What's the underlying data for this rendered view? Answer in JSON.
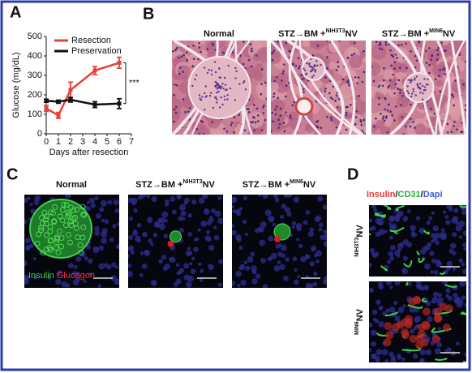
{
  "chart_data": {
    "type": "line",
    "panel": "A",
    "ylabel": "Glucose (mg/dL)",
    "xlabel": "Days after resection",
    "x": [
      0,
      1,
      2,
      4,
      6
    ],
    "series": [
      {
        "name": "Resection",
        "color": "#e5413b",
        "values": [
          130,
          95,
          225,
          325,
          365
        ],
        "errors": [
          15,
          15,
          40,
          20,
          28
        ]
      },
      {
        "name": "Preservation",
        "color": "#111111",
        "values": [
          170,
          165,
          175,
          150,
          155
        ],
        "errors": [
          8,
          8,
          12,
          15,
          25
        ]
      }
    ],
    "xlim": [
      0,
      7
    ],
    "xticks": [
      0,
      1,
      2,
      3,
      4,
      5,
      6,
      7
    ],
    "ylim": [
      0,
      500
    ],
    "yticks": [
      0,
      100,
      200,
      300,
      400,
      500
    ],
    "annotation": "***",
    "legend": "upper-left"
  },
  "panel_b": {
    "label": "B",
    "images": [
      {
        "title": [
          {
            "text": "Normal"
          }
        ]
      },
      {
        "title": [
          {
            "text": "STZ→BM +"
          },
          {
            "text": "NIH3T3",
            "sup": true
          },
          {
            "text": "NV"
          }
        ]
      },
      {
        "title": [
          {
            "text": "STZ→BM +"
          },
          {
            "text": "MIN6",
            "sup": true
          },
          {
            "text": "NV"
          }
        ]
      }
    ]
  },
  "panel_c": {
    "label": "C",
    "images": [
      {
        "title": [
          {
            "text": "Normal"
          }
        ]
      },
      {
        "title": [
          {
            "text": "STZ→BM +"
          },
          {
            "text": "NIH3T3",
            "sup": true
          },
          {
            "text": "NV"
          }
        ]
      },
      {
        "title": [
          {
            "text": "STZ→BM +"
          },
          {
            "text": "MIN6",
            "sup": true
          },
          {
            "text": "NV"
          }
        ]
      }
    ],
    "overlay": [
      {
        "text": "Insulin",
        "color": "#3fd24a"
      },
      {
        "text": " "
      },
      {
        "text": "Glucagon",
        "color": "#ff3030"
      }
    ]
  },
  "panel_d": {
    "label": "D",
    "header": [
      {
        "text": "Insulin",
        "color": "#e53935"
      },
      {
        "text": "/"
      },
      {
        "text": "CD31",
        "color": "#2eaa3a"
      },
      {
        "text": "/"
      },
      {
        "text": "Dapi",
        "color": "#3a5bd8"
      }
    ],
    "rows": [
      {
        "title": [
          {
            "text": "NIH3T3",
            "sup": true
          },
          {
            "text": "NV"
          }
        ]
      },
      {
        "title": [
          {
            "text": "MIN6",
            "sup": true
          },
          {
            "text": "NV"
          }
        ]
      }
    ]
  }
}
